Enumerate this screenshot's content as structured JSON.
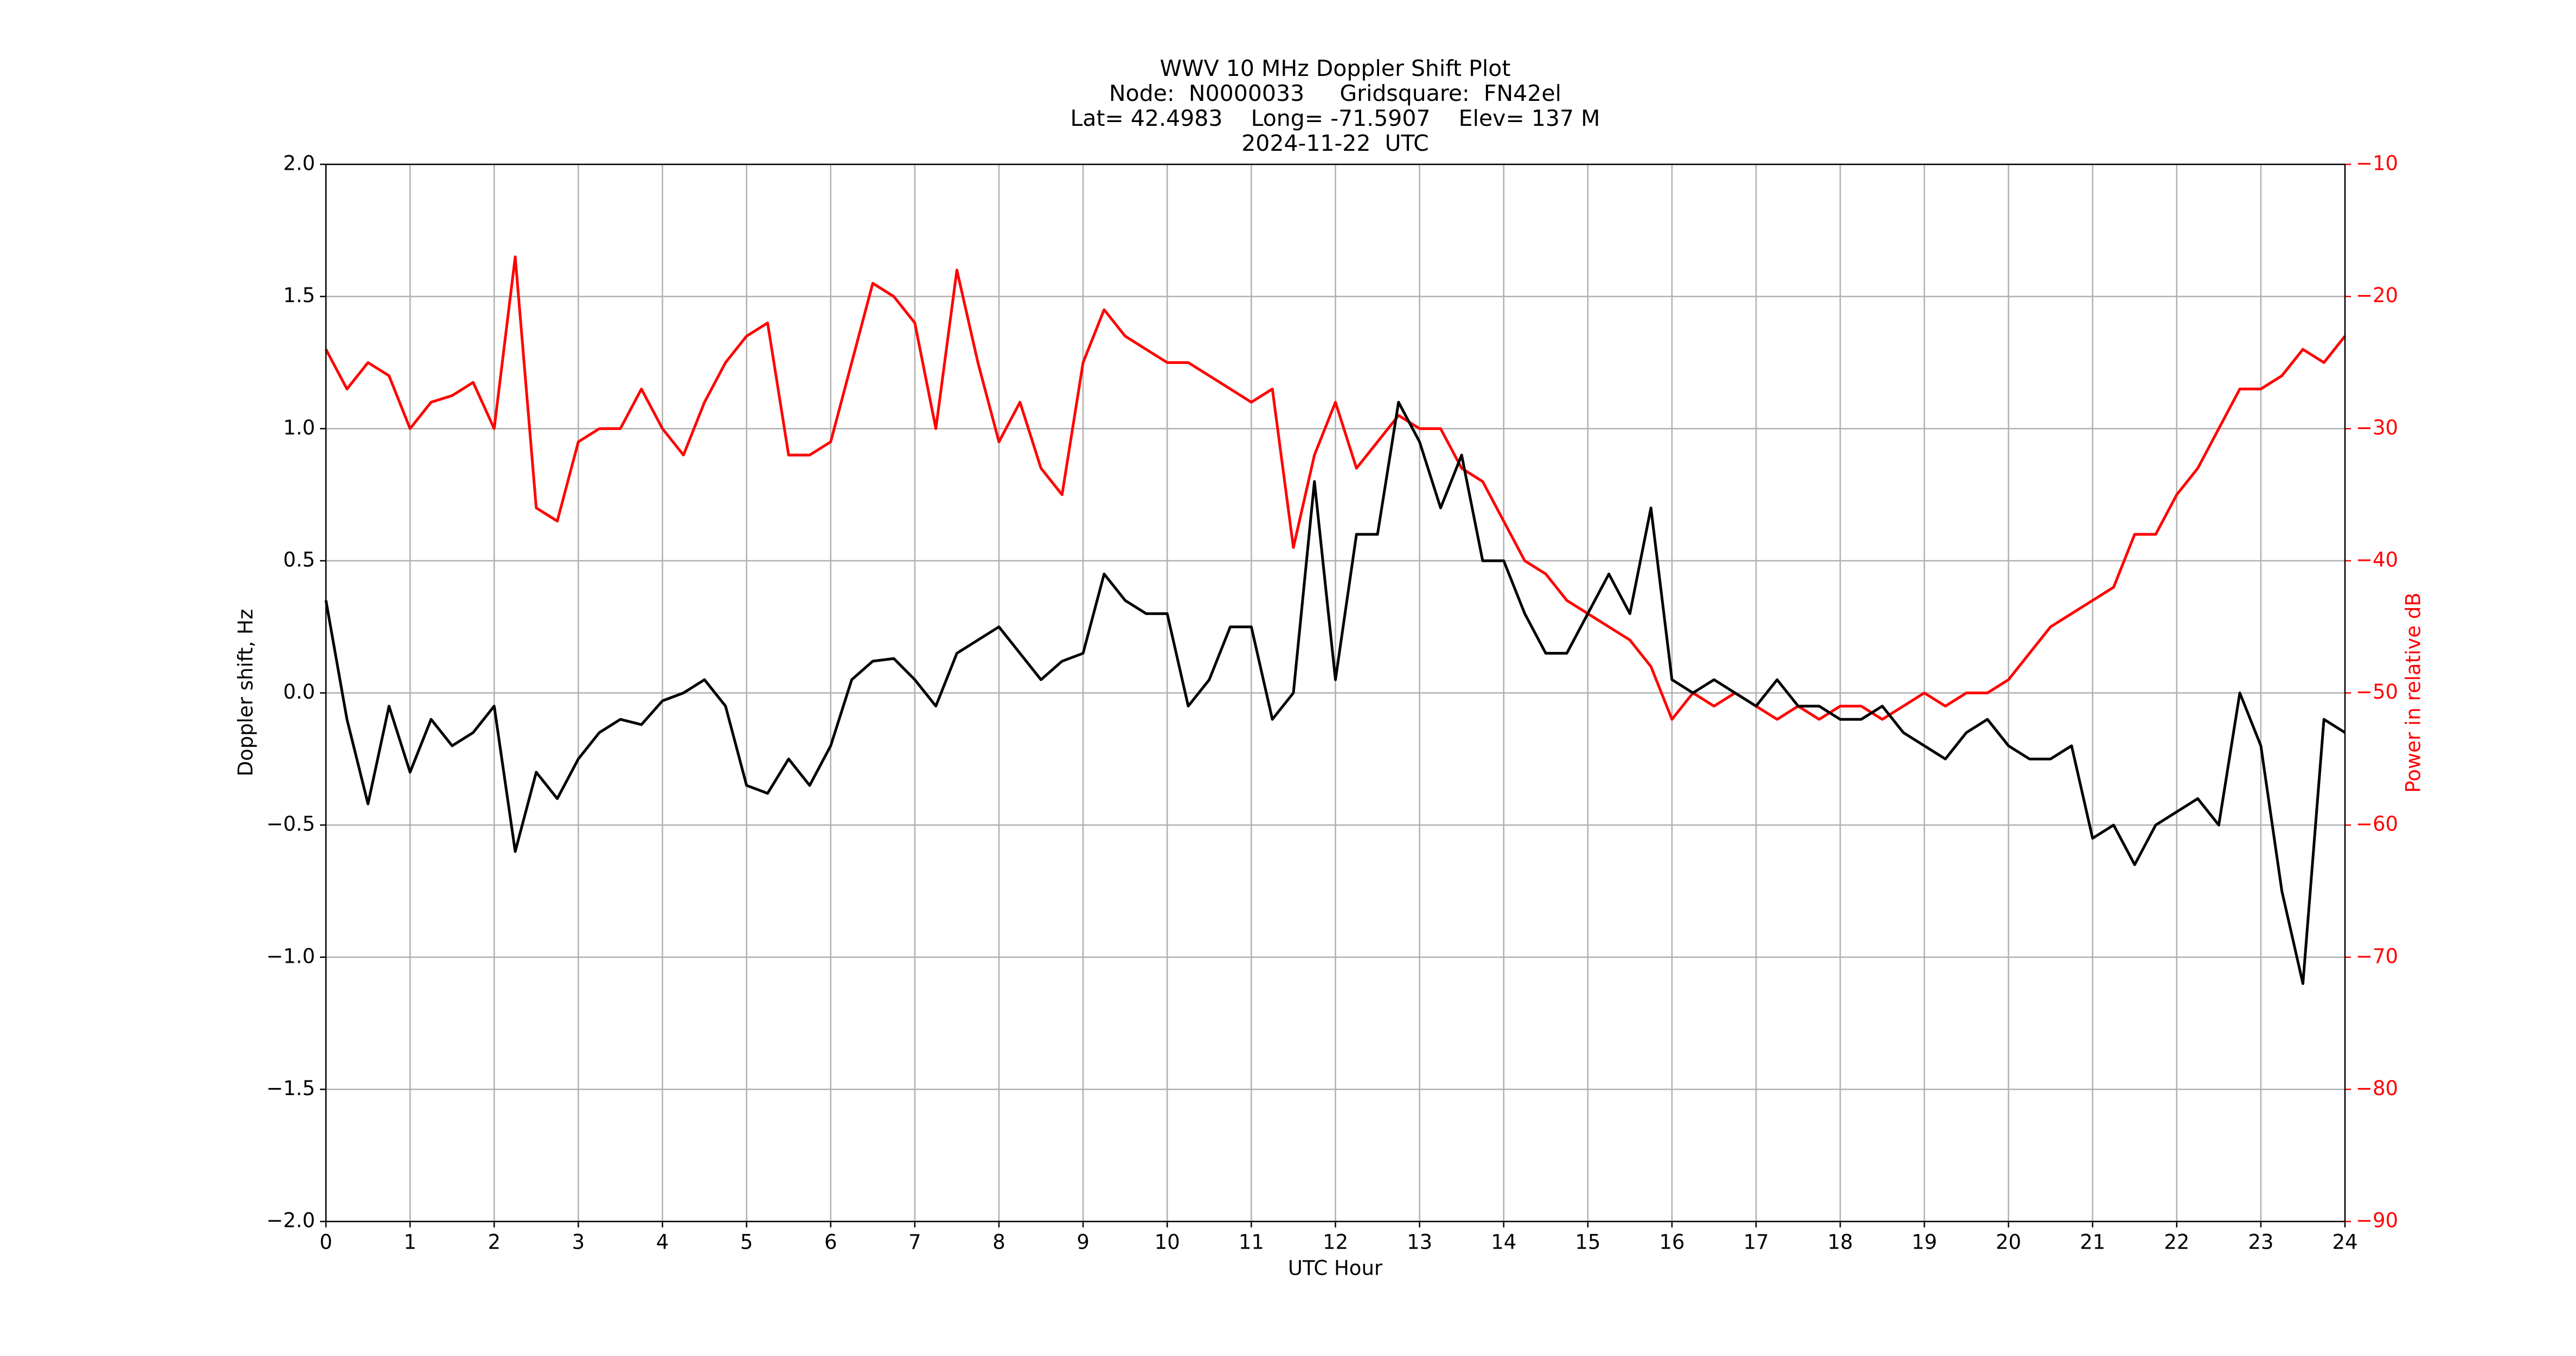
{
  "chart_data": {
    "type": "line",
    "title": [
      "WWV 10 MHz Doppler Shift Plot",
      "Node:  N0000033     Gridsquare:  FN42el",
      "Lat= 42.4983    Long= -71.5907    Elev= 137 M",
      "2024-11-22  UTC"
    ],
    "xlabel": "UTC Hour",
    "ylabel": "Doppler shift, Hz",
    "y2label": "Power in relative dB",
    "grid": true,
    "x": [
      0,
      0.25,
      0.5,
      0.75,
      1,
      1.25,
      1.5,
      1.75,
      2,
      2.25,
      2.5,
      2.75,
      3,
      3.25,
      3.5,
      3.75,
      4,
      4.25,
      4.5,
      4.75,
      5,
      5.25,
      5.5,
      5.75,
      6,
      6.25,
      6.5,
      6.75,
      7,
      7.25,
      7.5,
      7.75,
      8,
      8.25,
      8.5,
      8.75,
      9,
      9.25,
      9.5,
      9.75,
      10,
      10.25,
      10.5,
      10.75,
      11,
      11.25,
      11.5,
      11.75,
      12,
      12.25,
      12.5,
      12.75,
      13,
      13.25,
      13.5,
      13.75,
      14,
      14.25,
      14.5,
      14.75,
      15,
      15.25,
      15.5,
      15.75,
      16,
      16.25,
      16.5,
      16.75,
      17,
      17.25,
      17.5,
      17.75,
      18,
      18.25,
      18.5,
      18.75,
      19,
      19.25,
      19.5,
      19.75,
      20,
      20.25,
      20.5,
      20.75,
      21,
      21.25,
      21.5,
      21.75,
      22,
      22.25,
      22.5,
      22.75,
      23,
      23.25,
      23.5,
      23.75,
      24
    ],
    "series": [
      {
        "name": "Doppler shift",
        "color": "#000000",
        "axis": "y",
        "values": [
          0.35,
          -0.1,
          -0.42,
          -0.05,
          -0.3,
          -0.1,
          -0.2,
          -0.15,
          -0.05,
          -0.6,
          -0.3,
          -0.4,
          -0.25,
          -0.15,
          -0.1,
          -0.12,
          -0.03,
          0,
          0.05,
          -0.05,
          -0.35,
          -0.38,
          -0.25,
          -0.35,
          -0.2,
          0.05,
          0.12,
          0.13,
          0.05,
          -0.05,
          0.15,
          0.2,
          0.25,
          0.15,
          0.05,
          0.12,
          0.15,
          0.45,
          0.35,
          0.3,
          0.3,
          -0.05,
          0.05,
          0.25,
          0.25,
          -0.1,
          0,
          0.8,
          0.05,
          0.6,
          0.6,
          1.1,
          0.95,
          0.7,
          0.9,
          0.5,
          0.5,
          0.3,
          0.15,
          0.15,
          0.3,
          0.45,
          0.3,
          0.7,
          0.05,
          0,
          0.05,
          0,
          -0.05,
          0.05,
          -0.05,
          -0.05,
          -0.1,
          -0.1,
          -0.05,
          -0.15,
          -0.2,
          -0.25,
          -0.15,
          -0.1,
          -0.2,
          -0.25,
          -0.25,
          -0.2,
          -0.55,
          -0.5,
          -0.65,
          -0.5,
          -0.45,
          -0.4,
          -0.5,
          0,
          -0.2,
          -0.75,
          -1.1,
          -0.1,
          -0.15
        ]
      },
      {
        "name": "Power",
        "color": "#ff0000",
        "axis": "y2",
        "values": [
          -24,
          -27,
          -25,
          -26,
          -30,
          -28,
          -27.5,
          -26.5,
          -30,
          -17,
          -36,
          -37,
          -31,
          -30,
          -30,
          -27,
          -30,
          -32,
          -28,
          -25,
          -23,
          -22,
          -32,
          -32,
          -31,
          -25,
          -19,
          -20,
          -22,
          -30,
          -18,
          -25,
          -31,
          -28,
          -33,
          -35,
          -25,
          -21,
          -23,
          -24,
          -25,
          -25,
          -26,
          -27,
          -28,
          -27,
          -39,
          -32,
          -28,
          -33,
          -31,
          -29,
          -30,
          -30,
          -33,
          -34,
          -37,
          -40,
          -41,
          -43,
          -44,
          -45,
          -46,
          -48,
          -52,
          -50,
          -51,
          -50,
          -51,
          -52,
          -51,
          -52,
          -51,
          -51,
          -52,
          -51,
          -50,
          -51,
          -50,
          -50,
          -49,
          -47,
          -45,
          -44,
          -43,
          -42,
          -38,
          -38,
          -35,
          -33,
          -30,
          -27,
          -27,
          -26,
          -24,
          -25,
          -23
        ]
      }
    ],
    "xlim": [
      0,
      24
    ],
    "xticks": [
      0,
      1,
      2,
      3,
      4,
      5,
      6,
      7,
      8,
      9,
      10,
      11,
      12,
      13,
      14,
      15,
      16,
      17,
      18,
      19,
      20,
      21,
      22,
      23,
      24
    ],
    "ylim": [
      -2,
      2
    ],
    "yticks": [
      {
        "value": -2,
        "label": "−2.0"
      },
      {
        "value": -1.5,
        "label": "−1.5"
      },
      {
        "value": -1,
        "label": "−1.0"
      },
      {
        "value": -0.5,
        "label": "−0.5"
      },
      {
        "value": 0,
        "label": "0.0"
      },
      {
        "value": 0.5,
        "label": "0.5"
      },
      {
        "value": 1,
        "label": "1.0"
      },
      {
        "value": 1.5,
        "label": "1.5"
      },
      {
        "value": 2,
        "label": "2.0"
      }
    ],
    "y2lim": [
      -90,
      -10
    ],
    "y2ticks": [
      {
        "value": -90,
        "label": "−90"
      },
      {
        "value": -80,
        "label": "−80"
      },
      {
        "value": -70,
        "label": "−70"
      },
      {
        "value": -60,
        "label": "−60"
      },
      {
        "value": -50,
        "label": "−50"
      },
      {
        "value": -40,
        "label": "−40"
      },
      {
        "value": -30,
        "label": "−30"
      },
      {
        "value": -20,
        "label": "−20"
      },
      {
        "value": -10,
        "label": "−10"
      }
    ]
  }
}
